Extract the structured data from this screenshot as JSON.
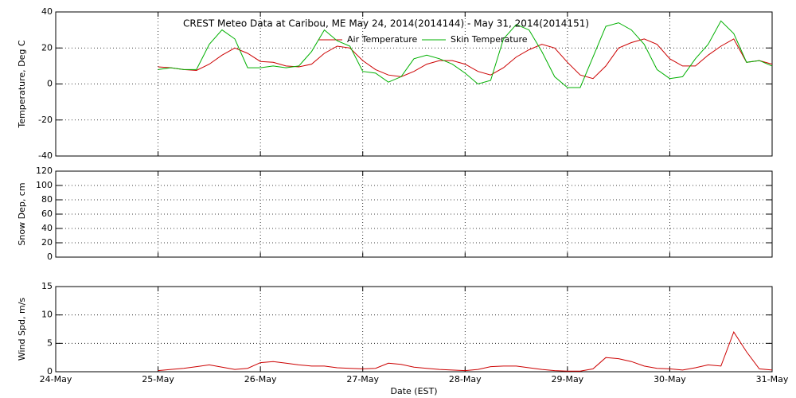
{
  "chart_data": [
    {
      "type": "line",
      "title": "CREST Meteo Data at Caribou, ME   May 24, 2014(2014144) - May 31, 2014(2014151)",
      "y_label": "Temperature, Deg C",
      "ylim": [
        -40,
        40
      ],
      "yticks": [
        -40,
        -20,
        0,
        20,
        40
      ],
      "grid": true,
      "x": [
        1,
        1.125,
        1.25,
        1.375,
        1.5,
        1.625,
        1.75,
        1.875,
        2,
        2.125,
        2.25,
        2.375,
        2.5,
        2.625,
        2.75,
        2.875,
        3,
        3.125,
        3.25,
        3.375,
        3.5,
        3.625,
        3.75,
        3.875,
        4,
        4.125,
        4.25,
        4.375,
        4.5,
        4.625,
        4.75,
        4.875,
        5,
        5.125,
        5.25,
        5.375,
        5.5,
        5.625,
        5.75,
        5.875,
        6,
        6.125,
        6.25,
        6.375,
        6.5,
        6.625,
        6.75,
        6.875,
        7
      ],
      "series": [
        {
          "name": "Air Temperature",
          "color": "#cc0000",
          "values": [
            9.5,
            9,
            8,
            7.5,
            11,
            16,
            20,
            17,
            12.5,
            12,
            10,
            9.5,
            11,
            17,
            21,
            20,
            13,
            8,
            5,
            4,
            7,
            11,
            13,
            13,
            11,
            7,
            5,
            9,
            15,
            19,
            22,
            20,
            12,
            5,
            3,
            10,
            20,
            23,
            25,
            22,
            14,
            10,
            10,
            16,
            21,
            25,
            12,
            13,
            11
          ]
        },
        {
          "name": "Skin Temperature",
          "color": "#00b000",
          "values": [
            8,
            9,
            8,
            8,
            22,
            30,
            25,
            9,
            9,
            10,
            9,
            10,
            18,
            30,
            24,
            21,
            7,
            6,
            1,
            4,
            14,
            16,
            14,
            11,
            6,
            0,
            2,
            25,
            33,
            30,
            18,
            4,
            -2,
            -2,
            15,
            32,
            34,
            30,
            22,
            8,
            3,
            4,
            14,
            22,
            35,
            28,
            12,
            13,
            10
          ]
        }
      ]
    },
    {
      "type": "line",
      "y_label": "Snow Dep, cm",
      "ylim": [
        0,
        120
      ],
      "yticks": [
        0,
        20,
        40,
        60,
        80,
        100,
        120
      ],
      "grid": true
    },
    {
      "type": "line",
      "y_label": "Wind Spd, m/s",
      "x_label": "Date (EST)",
      "xlim": [
        0,
        7
      ],
      "xticks": [
        {
          "value": 0,
          "label": "24-May"
        },
        {
          "value": 1,
          "label": "25-May"
        },
        {
          "value": 2,
          "label": "26-May"
        },
        {
          "value": 3,
          "label": "27-May"
        },
        {
          "value": 4,
          "label": "28-May"
        },
        {
          "value": 5,
          "label": "29-May"
        },
        {
          "value": 6,
          "label": "30-May"
        },
        {
          "value": 7,
          "label": "31-May"
        }
      ],
      "ylim": [
        0,
        15
      ],
      "yticks": [
        0,
        5,
        10,
        15
      ],
      "grid": true,
      "x": [
        1,
        1.125,
        1.25,
        1.375,
        1.5,
        1.625,
        1.75,
        1.875,
        2,
        2.125,
        2.25,
        2.375,
        2.5,
        2.625,
        2.75,
        2.875,
        3,
        3.125,
        3.25,
        3.375,
        3.5,
        3.625,
        3.75,
        3.875,
        4,
        4.125,
        4.25,
        4.375,
        4.5,
        4.625,
        4.75,
        4.875,
        5,
        5.125,
        5.25,
        5.375,
        5.5,
        5.625,
        5.75,
        5.875,
        6,
        6.125,
        6.25,
        6.375,
        6.5,
        6.625,
        6.75,
        6.875,
        7
      ],
      "series": [
        {
          "color": "#cc0000",
          "values": [
            0.2,
            0.4,
            0.6,
            0.9,
            1.2,
            0.8,
            0.4,
            0.6,
            1.6,
            1.8,
            1.5,
            1.2,
            1,
            1,
            0.7,
            0.6,
            0.5,
            0.6,
            1.5,
            1.3,
            0.8,
            0.6,
            0.4,
            0.3,
            0.2,
            0.4,
            0.9,
            1,
            1,
            0.7,
            0.4,
            0.2,
            0.1,
            0.1,
            0.5,
            2.5,
            2.3,
            1.8,
            1,
            0.6,
            0.5,
            0.3,
            0.7,
            1.2,
            1,
            7,
            3.5,
            0.5,
            0.3
          ]
        }
      ]
    }
  ]
}
